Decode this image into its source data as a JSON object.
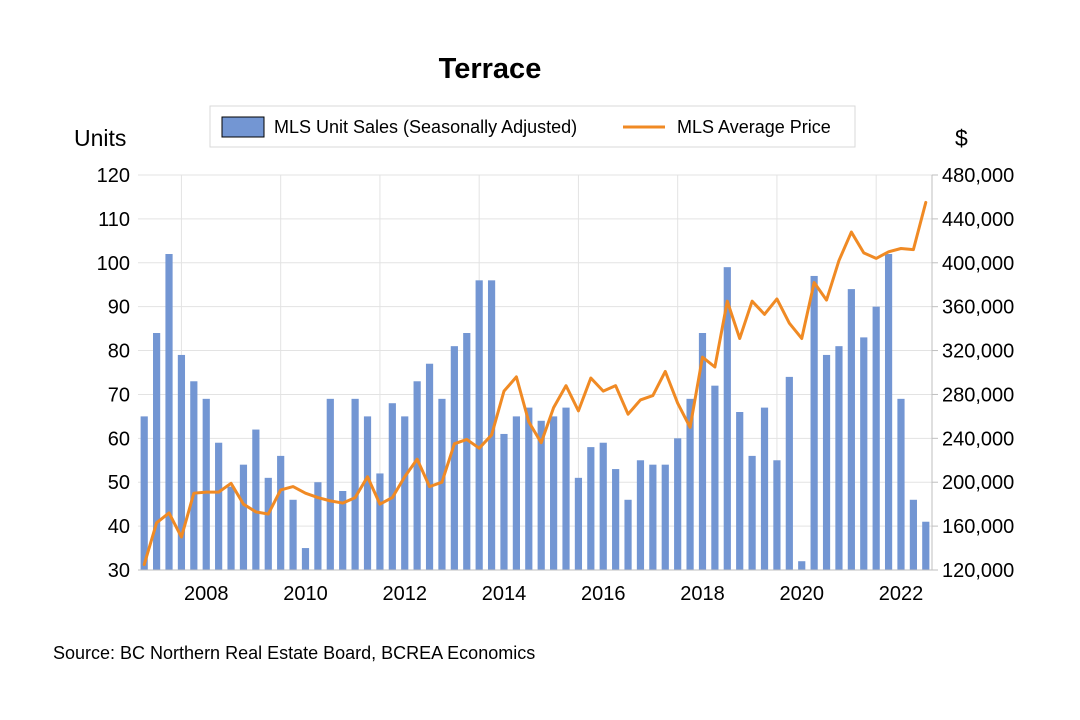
{
  "chart_data": {
    "type": "bar+line",
    "title": "Terrace",
    "y_left_label": "Units",
    "y_right_label": "$",
    "y_left_lim": [
      30,
      120
    ],
    "y_left_ticks": [
      "30",
      "40",
      "50",
      "60",
      "70",
      "80",
      "90",
      "100",
      "110",
      "120"
    ],
    "y_right_lim": [
      120000,
      480000
    ],
    "y_right_ticks": [
      "120,000",
      "160,000",
      "200,000",
      "240,000",
      "280,000",
      "320,000",
      "360,000",
      "400,000",
      "440,000",
      "480,000"
    ],
    "x_start": 2006.625,
    "x_step": 0.25,
    "x_ticks": [
      "2008",
      "2010",
      "2012",
      "2014",
      "2016",
      "2018",
      "2020",
      "2022"
    ],
    "grid": "horizontal and vertical",
    "legend_placement": "top-center",
    "series": [
      {
        "name": "MLS Unit Sales (Seasonally Adjusted)",
        "type": "bar",
        "axis": "left",
        "color": "#7396d3",
        "values": [
          65,
          84,
          102,
          79,
          73,
          69,
          59,
          49,
          54,
          62,
          51,
          56,
          46,
          35,
          50,
          69,
          48,
          69,
          65,
          52,
          68,
          65,
          73,
          77,
          69,
          81,
          84,
          96,
          96,
          61,
          65,
          67,
          64,
          65,
          67,
          51,
          58,
          59,
          53,
          46,
          55,
          54,
          54,
          60,
          69,
          84,
          72,
          99,
          66,
          56,
          67,
          55,
          74,
          32,
          97,
          79,
          81,
          94,
          83,
          90,
          102,
          69,
          46,
          41
        ]
      },
      {
        "name": "MLS Average Price",
        "type": "line",
        "axis": "right",
        "color": "#f08a24",
        "values": [
          125000,
          163000,
          172000,
          150000,
          190000,
          191000,
          191000,
          199000,
          180000,
          173000,
          171000,
          193000,
          196000,
          190000,
          186000,
          183000,
          181000,
          186000,
          205000,
          180000,
          186000,
          205000,
          221000,
          196000,
          200000,
          235000,
          239000,
          231000,
          243000,
          283000,
          296000,
          255000,
          236000,
          268000,
          288000,
          265000,
          295000,
          283000,
          288000,
          262000,
          275000,
          279000,
          301000,
          272000,
          250000,
          314000,
          305000,
          365000,
          331000,
          365000,
          353000,
          367000,
          345000,
          331000,
          382000,
          366000,
          402000,
          428000,
          409000,
          404000,
          410000,
          413000,
          412000,
          455000
        ]
      }
    ],
    "source": "Source:  BC Northern Real Estate Board, BCREA Economics"
  }
}
